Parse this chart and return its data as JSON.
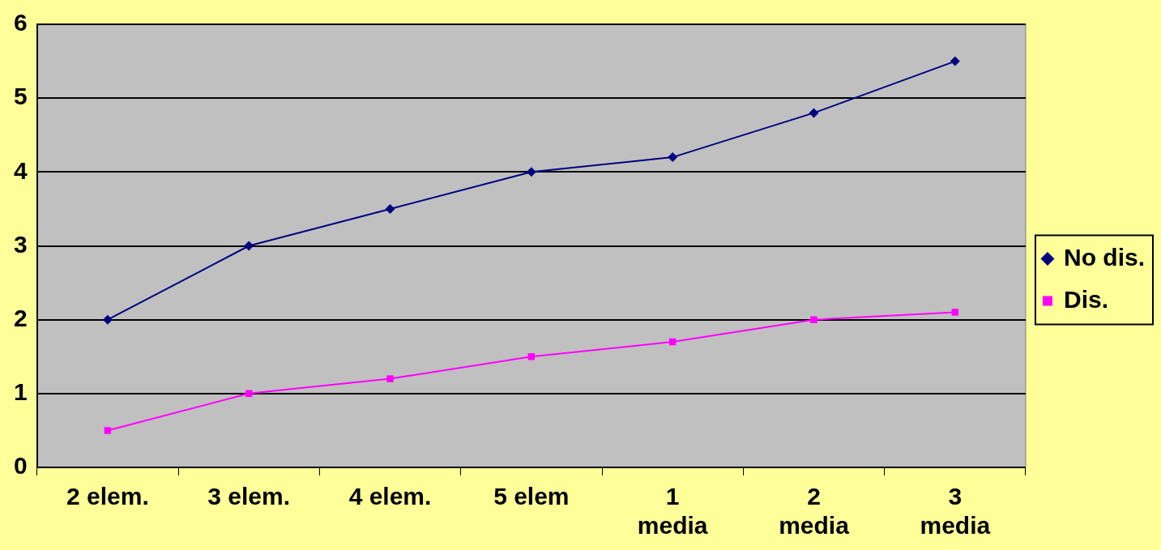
{
  "chart_data": {
    "type": "line",
    "categories": [
      "2 elem.",
      "3 elem.",
      "4 elem.",
      "5 elem",
      "1\nmedia",
      "2\nmedia",
      "3\nmedia"
    ],
    "series": [
      {
        "name": "No dis.",
        "color": "#000080",
        "marker": "diamond",
        "values": [
          2,
          3,
          3.5,
          4,
          4.2,
          4.8,
          5.5
        ]
      },
      {
        "name": "Dis.",
        "color": "#ff00ff",
        "marker": "square",
        "values": [
          0.5,
          1,
          1.2,
          1.5,
          1.7,
          2,
          2.1
        ]
      }
    ],
    "ylim": [
      0,
      6
    ],
    "yticks": [
      0,
      1,
      2,
      3,
      4,
      5,
      6
    ],
    "grid": "y",
    "legend": "right",
    "line_style": "solid"
  }
}
